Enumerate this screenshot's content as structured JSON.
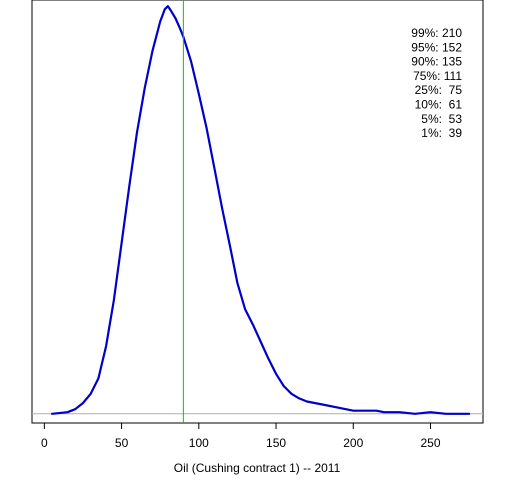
{
  "chart_data": {
    "type": "line",
    "xlabel": "Oil (Cushing contract 1) -- 2011",
    "ylabel": "",
    "xlim": [
      -8,
      284
    ],
    "ylim": [
      -0.0006,
      0.0269
    ],
    "xticks": [
      0,
      50,
      100,
      150,
      200,
      250
    ],
    "grid": false,
    "vline": {
      "x": 90,
      "color": "#00c800"
    },
    "baseline": {
      "y": 0,
      "color": "#b0b0b0"
    },
    "line_color": "#0000cc",
    "series": [
      {
        "x": [
          5,
          15,
          20,
          25,
          30,
          35,
          40,
          45,
          50,
          55,
          60,
          65,
          70,
          75,
          78,
          80,
          82,
          85,
          88,
          90,
          95,
          100,
          105,
          110,
          115,
          120,
          125,
          130,
          135,
          140,
          145,
          150,
          155,
          160,
          165,
          170,
          180,
          190,
          200,
          210,
          215,
          220,
          230,
          240,
          250,
          260,
          270,
          275
        ],
        "y": [
          0.0,
          0.0001,
          0.0003,
          0.0007,
          0.0013,
          0.0023,
          0.0044,
          0.0074,
          0.0111,
          0.0148,
          0.0183,
          0.0212,
          0.0236,
          0.0255,
          0.0263,
          0.0265,
          0.0262,
          0.0257,
          0.025,
          0.0245,
          0.0229,
          0.0208,
          0.0186,
          0.016,
          0.0134,
          0.011,
          0.0085,
          0.0068,
          0.0058,
          0.0047,
          0.0036,
          0.0026,
          0.0018,
          0.0013,
          0.001,
          0.0008,
          0.0006,
          0.0004,
          0.0002,
          0.0002,
          0.0002,
          0.0001,
          0.0001,
          0.0,
          0.0001,
          0.0,
          0.0,
          0.0
        ]
      }
    ],
    "annotations": [
      "99%: 210",
      "95%: 152",
      "90%: 135",
      "75%: 111",
      "25%:  75",
      "10%:  61",
      "5%:  53",
      "1%:  39"
    ]
  }
}
